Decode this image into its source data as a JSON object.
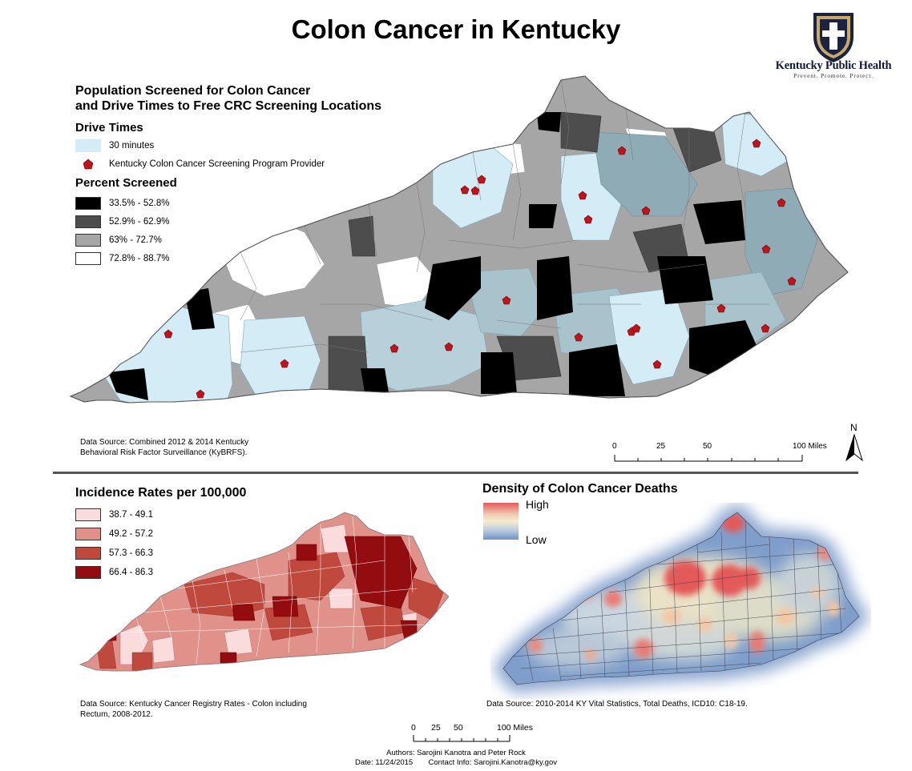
{
  "title": "Colon Cancer in Kentucky",
  "logo": {
    "name": "Kentucky Public Health",
    "tagline": "Prevent. Promote. Protect."
  },
  "screening_map": {
    "title_line1": "Population Screened for Colon Cancer",
    "title_line2": "and Drive Times to Free CRC Screening Locations",
    "drive_times_heading": "Drive Times",
    "drive_time_item": "30 minutes",
    "drive_time_color": "#d4ecf5",
    "provider_item": "Kentucky Colon Cancer Screening Program Provider",
    "provider_color": "#c0141c",
    "percent_heading": "Percent Screened",
    "classes": [
      {
        "label": "33.5% - 52.8%",
        "color": "#000000"
      },
      {
        "label": "52.9% - 62.9%",
        "color": "#4d4d4d"
      },
      {
        "label": "63% - 72.7%",
        "color": "#a6a6a6"
      },
      {
        "label": "72.8% - 88.7%",
        "color": "#ffffff"
      }
    ],
    "source_line1": "Data Source: Combined 2012 & 2014 Kentucky",
    "source_line2": "Behavioral Risk Factor Surveillance (KyBRFS).",
    "scale_ticks": [
      "0",
      "25",
      "50",
      "100 Miles"
    ],
    "north": "N"
  },
  "incidence_map": {
    "title": "Incidence Rates per 100,000",
    "classes": [
      {
        "label": "38.7 - 49.1",
        "color": "#fadcdc"
      },
      {
        "label": "49.2 - 57.2",
        "color": "#e0918a"
      },
      {
        "label": "57.3 - 66.3",
        "color": "#c0493e"
      },
      {
        "label": "66.4 - 86.3",
        "color": "#930c10"
      }
    ],
    "source_line1": "Data Source: Kentucky Cancer Registry Rates - Colon including",
    "source_line2": "Rectum, 2008-2012."
  },
  "density_map": {
    "title": "Density of Colon Cancer Deaths",
    "high_label": "High",
    "low_label": "Low",
    "high_color": "#e35a5a",
    "low_color": "#6f93c6",
    "source": "Data Source: 2010-2014 KY Vital Statistics, Total Deaths, ICD10: C18-19."
  },
  "footer": {
    "scale_ticks": [
      "0",
      "25",
      "50",
      "100 Miles"
    ],
    "authors": "Authors: Sarojini Kanotra and Peter Rock",
    "date": "Date: 11/24/2015",
    "contact": "Contact Info: Sarojini.Kanotra@ky.gov"
  }
}
